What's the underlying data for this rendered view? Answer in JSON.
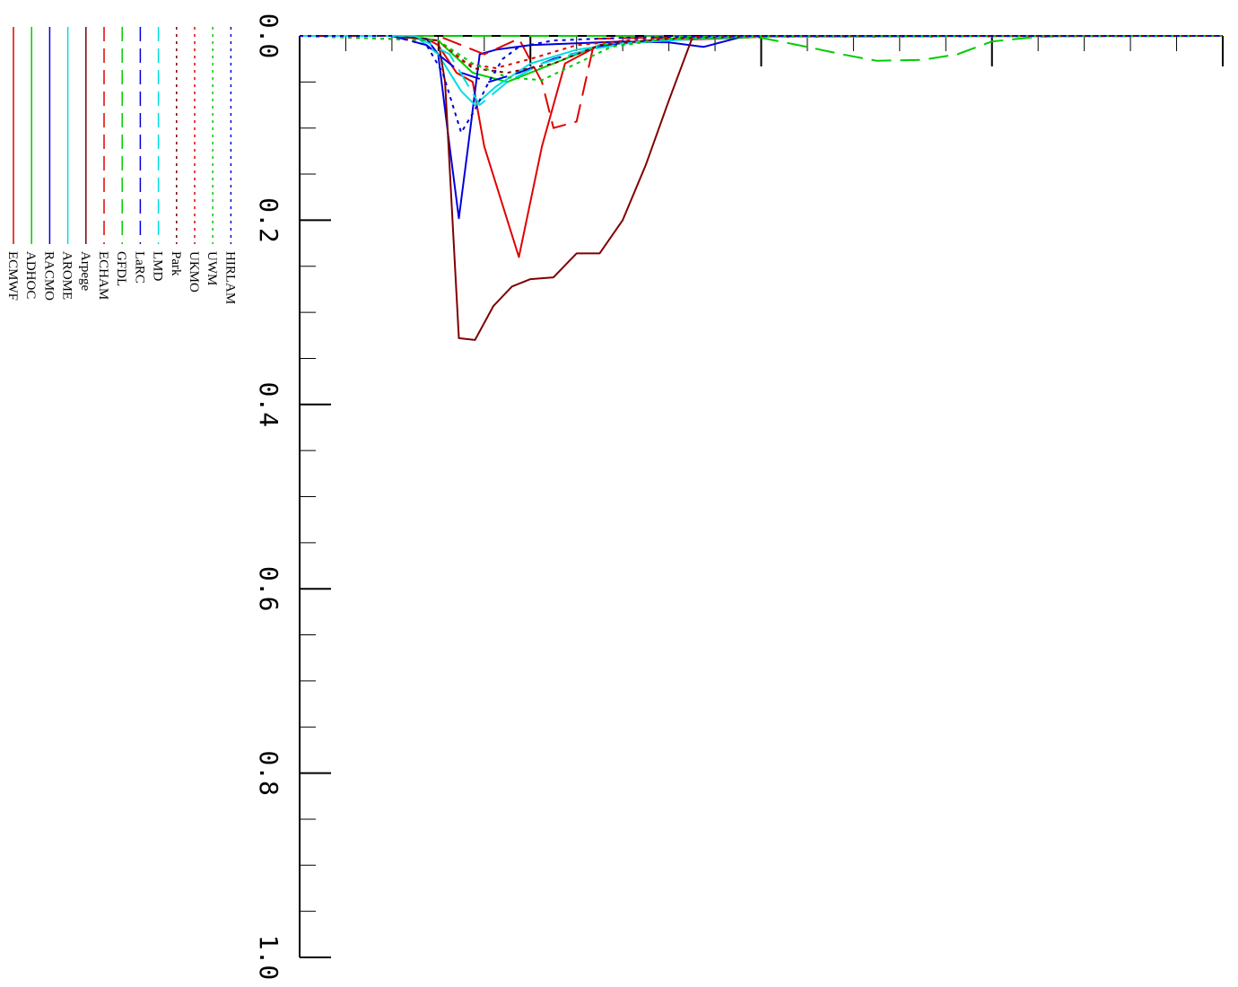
{
  "chart_data": {
    "type": "line",
    "orientation": "rotated-90-clockwise",
    "title": "",
    "xlabel": "",
    "ylabel": "",
    "ylim": [
      0.0,
      1.0
    ],
    "y_ticks": [
      "0.0",
      "0.2",
      "0.4",
      "0.6",
      "0.8",
      "1.0"
    ],
    "x_extent": [
      0,
      4
    ],
    "x_tick_values": [
      0,
      0.2,
      0.4,
      0.6,
      0.8,
      1.0,
      1.2,
      1.4,
      1.6,
      1.8,
      2.0,
      2.2,
      2.4,
      2.6,
      2.8,
      3.0,
      3.2,
      3.4,
      3.6,
      3.8,
      4.0
    ],
    "x_major_ticks": [
      1,
      2,
      3,
      4
    ],
    "grid": false,
    "legend": "left-vertical",
    "series": [
      {
        "name": "ECMWF",
        "color": "#e00000",
        "dash": "solid",
        "points": [
          [
            0,
            0
          ],
          [
            0.4,
            0
          ],
          [
            0.55,
            0.003
          ],
          [
            0.6,
            0.01
          ],
          [
            0.68,
            0.04
          ],
          [
            0.75,
            0.05
          ],
          [
            0.8,
            0.12
          ],
          [
            0.95,
            0.24
          ],
          [
            1.05,
            0.12
          ],
          [
            1.15,
            0.03
          ],
          [
            1.3,
            0.01
          ],
          [
            1.5,
            0.005
          ],
          [
            1.7,
            0.004
          ],
          [
            1.9,
            0.002
          ],
          [
            2.1,
            0
          ],
          [
            4,
            0
          ]
        ]
      },
      {
        "name": "ADHOC",
        "color": "#00cc00",
        "dash": "solid",
        "points": [
          [
            0,
            0
          ],
          [
            0.4,
            0
          ],
          [
            0.6,
            0.005
          ],
          [
            0.75,
            0.04
          ],
          [
            0.9,
            0.05
          ],
          [
            1.1,
            0.03
          ],
          [
            1.3,
            0.01
          ],
          [
            1.6,
            0.004
          ],
          [
            2.0,
            0.001
          ],
          [
            4,
            0
          ]
        ]
      },
      {
        "name": "RACMO",
        "color": "#0000dd",
        "dash": "solid",
        "points": [
          [
            0,
            0
          ],
          [
            0.4,
            0
          ],
          [
            0.55,
            0.003
          ],
          [
            0.6,
            0.02
          ],
          [
            0.65,
            0.12
          ],
          [
            0.69,
            0.198
          ],
          [
            0.73,
            0.12
          ],
          [
            0.78,
            0.02
          ],
          [
            0.85,
            0.015
          ],
          [
            1.0,
            0.01
          ],
          [
            1.2,
            0.008
          ],
          [
            1.4,
            0.006
          ],
          [
            1.6,
            0.007
          ],
          [
            1.75,
            0.012
          ],
          [
            1.9,
            0.002
          ],
          [
            2.0,
            0
          ],
          [
            4,
            0
          ]
        ]
      },
      {
        "name": "AROME",
        "color": "#00dddd",
        "dash": "solid",
        "points": [
          [
            0,
            0
          ],
          [
            0.5,
            0
          ],
          [
            0.6,
            0.02
          ],
          [
            0.7,
            0.06
          ],
          [
            0.76,
            0.075
          ],
          [
            0.85,
            0.055
          ],
          [
            1.0,
            0.03
          ],
          [
            1.2,
            0.015
          ],
          [
            1.4,
            0.008
          ],
          [
            1.6,
            0.005
          ],
          [
            1.8,
            0.002
          ],
          [
            2.0,
            0
          ],
          [
            4,
            0
          ]
        ]
      },
      {
        "name": "Arpege",
        "color": "#800000",
        "dash": "solid",
        "points": [
          [
            0,
            0
          ],
          [
            0.4,
            0
          ],
          [
            0.6,
            0.005
          ],
          [
            0.63,
            0.05
          ],
          [
            0.69,
            0.328
          ],
          [
            0.76,
            0.33
          ],
          [
            0.84,
            0.293
          ],
          [
            0.92,
            0.272
          ],
          [
            1.0,
            0.264
          ],
          [
            1.1,
            0.262
          ],
          [
            1.2,
            0.236
          ],
          [
            1.3,
            0.236
          ],
          [
            1.4,
            0.2
          ],
          [
            1.5,
            0.14
          ],
          [
            1.6,
            0.07
          ],
          [
            1.7,
            0.003
          ],
          [
            1.75,
            0
          ],
          [
            4,
            0
          ]
        ]
      },
      {
        "name": "ECHAM",
        "color": "#e00000",
        "dash": "dashed",
        "points": [
          [
            0,
            0
          ],
          [
            0.6,
            0
          ],
          [
            0.8,
            0.02
          ],
          [
            0.95,
            0.003
          ],
          [
            1.05,
            0.05
          ],
          [
            1.1,
            0.1
          ],
          [
            1.2,
            0.093
          ],
          [
            1.28,
            0.003
          ],
          [
            1.5,
            0.002
          ],
          [
            2.0,
            0
          ],
          [
            4,
            0
          ]
        ]
      },
      {
        "name": "GFDL",
        "color": "#00cc00",
        "dash": "dashed",
        "points": [
          [
            0,
            0
          ],
          [
            1.6,
            0
          ],
          [
            1.8,
            0.001
          ],
          [
            2.0,
            0.002
          ],
          [
            2.2,
            0.012
          ],
          [
            2.35,
            0.02
          ],
          [
            2.5,
            0.027
          ],
          [
            2.7,
            0.026
          ],
          [
            2.85,
            0.02
          ],
          [
            3.0,
            0.006
          ],
          [
            3.2,
            0.001
          ],
          [
            3.4,
            0
          ],
          [
            4,
            0
          ]
        ]
      },
      {
        "name": "LaRC",
        "color": "#0000dd",
        "dash": "dashed",
        "points": [
          [
            0,
            0
          ],
          [
            0.4,
            0
          ],
          [
            0.55,
            0.01
          ],
          [
            0.7,
            0.04
          ],
          [
            0.82,
            0.05
          ],
          [
            0.95,
            0.04
          ],
          [
            1.1,
            0.025
          ],
          [
            1.3,
            0.012
          ],
          [
            1.5,
            0.005
          ],
          [
            1.8,
            0.001
          ],
          [
            4,
            0
          ]
        ]
      },
      {
        "name": "LMD",
        "color": "#00dddd",
        "dash": "dashed",
        "points": [
          [
            0,
            0
          ],
          [
            0.5,
            0
          ],
          [
            0.65,
            0.02
          ],
          [
            0.78,
            0.075
          ],
          [
            0.9,
            0.05
          ],
          [
            1.05,
            0.03
          ],
          [
            1.25,
            0.015
          ],
          [
            1.5,
            0.005
          ],
          [
            1.8,
            0.001
          ],
          [
            4,
            0
          ]
        ]
      },
      {
        "name": "Park",
        "color": "#800000",
        "dash": "dotted",
        "points": [
          [
            0,
            0
          ],
          [
            0.6,
            0.005
          ],
          [
            0.75,
            0.035
          ],
          [
            0.9,
            0.04
          ],
          [
            1.1,
            0.03
          ],
          [
            1.3,
            0.01
          ],
          [
            1.6,
            0.003
          ],
          [
            2.0,
            0
          ],
          [
            4,
            0
          ]
        ]
      },
      {
        "name": "UKMO",
        "color": "#e00000",
        "dash": "dotted",
        "points": [
          [
            0,
            0
          ],
          [
            0.6,
            0.005
          ],
          [
            0.72,
            0.03
          ],
          [
            0.85,
            0.035
          ],
          [
            1.0,
            0.025
          ],
          [
            1.2,
            0.01
          ],
          [
            1.5,
            0.003
          ],
          [
            2.0,
            0
          ],
          [
            4,
            0
          ]
        ]
      },
      {
        "name": "UWM",
        "color": "#00cc00",
        "dash": "dotted",
        "points": [
          [
            0,
            0
          ],
          [
            0.6,
            0.005
          ],
          [
            0.75,
            0.03
          ],
          [
            0.9,
            0.045
          ],
          [
            1.05,
            0.048
          ],
          [
            1.2,
            0.03
          ],
          [
            1.35,
            0.012
          ],
          [
            1.6,
            0.003
          ],
          [
            2.0,
            0
          ],
          [
            4,
            0
          ]
        ]
      },
      {
        "name": "HIRLAM",
        "color": "#0000dd",
        "dash": "dotted",
        "points": [
          [
            0,
            0
          ],
          [
            0.4,
            0
          ],
          [
            0.55,
            0.01
          ],
          [
            0.62,
            0.04
          ],
          [
            0.7,
            0.105
          ],
          [
            0.76,
            0.08
          ],
          [
            0.82,
            0.05
          ],
          [
            0.88,
            0.025
          ],
          [
            0.95,
            0.012
          ],
          [
            1.1,
            0.005
          ],
          [
            1.4,
            0.002
          ],
          [
            1.8,
            0
          ],
          [
            4,
            0
          ]
        ]
      }
    ]
  }
}
